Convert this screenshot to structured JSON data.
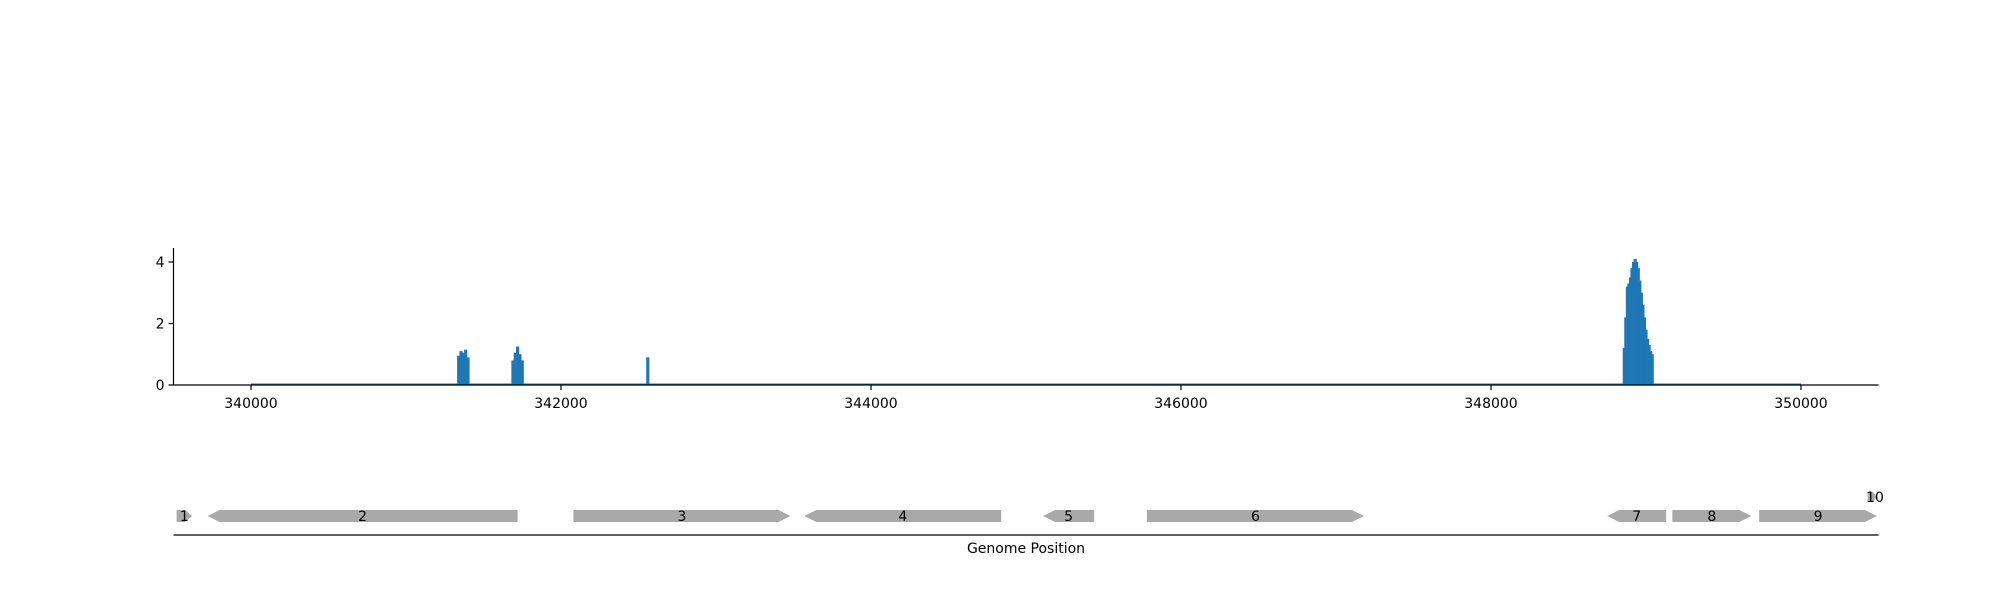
{
  "chart_data": [
    {
      "type": "area",
      "title": "",
      "xlabel": "",
      "ylabel": "",
      "xlim": [
        339500,
        350500
      ],
      "ylim": [
        0,
        4.5
      ],
      "x_ticks": [
        340000,
        342000,
        344000,
        346000,
        348000,
        350000
      ],
      "y_ticks": [
        0,
        2,
        4
      ],
      "grid": false,
      "color": "#1f77b4",
      "baseline_range": [
        340000,
        350000
      ],
      "peaks": [
        {
          "x": 341340,
          "y": 0.95
        },
        {
          "x": 341355,
          "y": 1.1
        },
        {
          "x": 341370,
          "y": 1.05
        },
        {
          "x": 341385,
          "y": 1.15
        },
        {
          "x": 341400,
          "y": 0.9
        },
        {
          "x": 341690,
          "y": 0.8
        },
        {
          "x": 341705,
          "y": 1.05
        },
        {
          "x": 341720,
          "y": 1.25
        },
        {
          "x": 341735,
          "y": 1.0
        },
        {
          "x": 341750,
          "y": 0.8
        },
        {
          "x": 342560,
          "y": 0.9
        },
        {
          "x": 348860,
          "y": 1.2
        },
        {
          "x": 348870,
          "y": 2.2
        },
        {
          "x": 348880,
          "y": 3.2
        },
        {
          "x": 348890,
          "y": 3.3
        },
        {
          "x": 348900,
          "y": 3.5
        },
        {
          "x": 348910,
          "y": 3.8
        },
        {
          "x": 348920,
          "y": 4.0
        },
        {
          "x": 348930,
          "y": 4.1
        },
        {
          "x": 348940,
          "y": 4.0
        },
        {
          "x": 348950,
          "y": 3.8
        },
        {
          "x": 348960,
          "y": 3.4
        },
        {
          "x": 348970,
          "y": 3.0
        },
        {
          "x": 348980,
          "y": 2.6
        },
        {
          "x": 348990,
          "y": 2.2
        },
        {
          "x": 349000,
          "y": 1.8
        },
        {
          "x": 349010,
          "y": 1.5
        },
        {
          "x": 349020,
          "y": 1.3
        },
        {
          "x": 349030,
          "y": 1.1
        },
        {
          "x": 349040,
          "y": 1.0
        }
      ]
    },
    {
      "type": "gene-track",
      "xlabel": "Genome Position",
      "xlim": [
        339500,
        350500
      ],
      "color": "#a9a9a9",
      "genes": [
        {
          "label": "1",
          "start": 339520,
          "end": 339620,
          "strand": "+"
        },
        {
          "label": "2",
          "start": 339720,
          "end": 341720,
          "strand": "-"
        },
        {
          "label": "3",
          "start": 342080,
          "end": 343480,
          "strand": "+"
        },
        {
          "label": "4",
          "start": 343570,
          "end": 344840,
          "strand": "-"
        },
        {
          "label": "5",
          "start": 345110,
          "end": 345440,
          "strand": "-"
        },
        {
          "label": "6",
          "start": 345780,
          "end": 347180,
          "strand": "+"
        },
        {
          "label": "7",
          "start": 348750,
          "end": 349130,
          "strand": "-"
        },
        {
          "label": "8",
          "start": 349170,
          "end": 349680,
          "strand": "+"
        },
        {
          "label": "9",
          "start": 349730,
          "end": 350490,
          "strand": "+"
        },
        {
          "label": "10",
          "start": 350430,
          "end": 350490,
          "strand": "+",
          "row": 1
        }
      ]
    }
  ]
}
